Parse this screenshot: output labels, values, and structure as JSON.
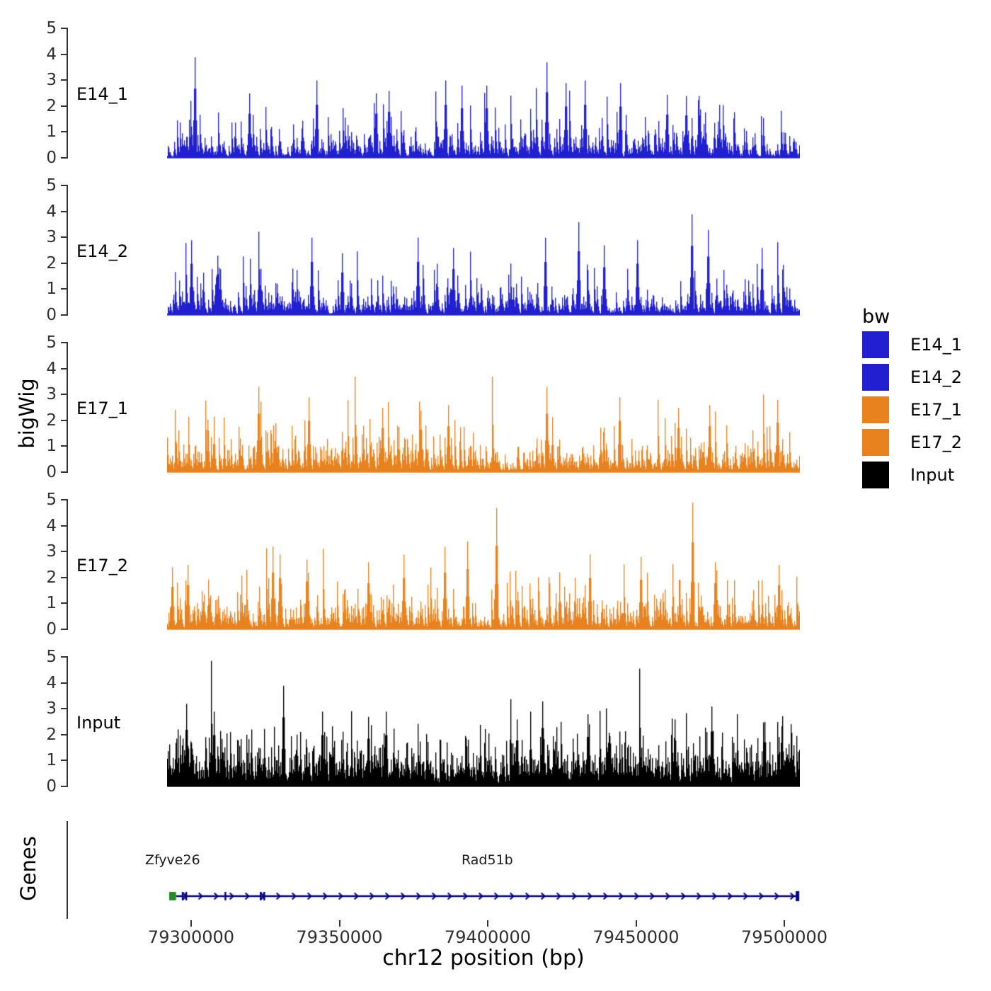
{
  "axis": {
    "y_title": "bigWig",
    "x_title": "chr12 position (bp)",
    "y_ticks": [
      0,
      1,
      2,
      3,
      4,
      5
    ],
    "x_ticks": [
      {
        "bp": 79300000,
        "label": "79300000"
      },
      {
        "bp": 79350000,
        "label": "79350000"
      },
      {
        "bp": 79400000,
        "label": "79400000"
      },
      {
        "bp": 79450000,
        "label": "79450000"
      },
      {
        "bp": 79500000,
        "label": "79500000"
      }
    ]
  },
  "legend": {
    "title": "bw",
    "items": [
      {
        "label": "E14_1",
        "color": "#2020D0"
      },
      {
        "label": "E14_2",
        "color": "#2020D0"
      },
      {
        "label": "E17_1",
        "color": "#E8821E"
      },
      {
        "label": "E17_2",
        "color": "#E8821E"
      },
      {
        "label": "Input",
        "color": "#000000"
      }
    ]
  },
  "genes_panel": {
    "axis_label": "Genes"
  },
  "chart_data": {
    "type": "area",
    "title": "",
    "xlabel": "chr12 position (bp)",
    "ylabel": "bigWig",
    "x_range_bp": [
      79292000,
      79505000
    ],
    "x_tick_bp": [
      79300000,
      79350000,
      79400000,
      79450000,
      79500000
    ],
    "ylim": [
      0,
      5
    ],
    "grid": false,
    "legend_position": "right",
    "tracks": [
      {
        "name": "E14_1",
        "color": "#2020D0",
        "ylim": [
          0,
          5
        ],
        "max_observed": 3.9,
        "baseline_range": [
          0,
          1.5
        ],
        "seed": 101,
        "noise": {
          "scale": 0.46,
          "decay": 0.55,
          "floor": 0.05,
          "gap": 0.06,
          "dense": false
        },
        "peaks": [
          [
            0.044,
            3.9
          ],
          [
            0.13,
            2.5
          ],
          [
            0.236,
            3.0
          ],
          [
            0.33,
            2.5
          ],
          [
            0.35,
            2.6
          ],
          [
            0.44,
            3.0
          ],
          [
            0.465,
            2.8
          ],
          [
            0.505,
            2.8
          ],
          [
            0.6,
            3.7
          ],
          [
            0.63,
            2.9
          ],
          [
            0.66,
            3.0
          ],
          [
            0.716,
            2.9
          ],
          [
            0.79,
            2.45
          ],
          [
            0.82,
            2.4
          ],
          [
            0.84,
            2.4
          ]
        ]
      },
      {
        "name": "E14_2",
        "color": "#2020D0",
        "ylim": [
          0,
          5
        ],
        "max_observed": 3.9,
        "baseline_range": [
          0,
          1.5
        ],
        "seed": 202,
        "noise": {
          "scale": 0.47,
          "decay": 0.55,
          "floor": 0.05,
          "gap": 0.06,
          "dense": false
        },
        "peaks": [
          [
            0.038,
            2.9
          ],
          [
            0.079,
            2.3
          ],
          [
            0.228,
            3.0
          ],
          [
            0.276,
            2.4
          ],
          [
            0.396,
            3.0
          ],
          [
            0.452,
            2.6
          ],
          [
            0.597,
            3.0
          ],
          [
            0.65,
            3.6
          ],
          [
            0.69,
            2.7
          ],
          [
            0.743,
            2.9
          ],
          [
            0.829,
            3.9
          ],
          [
            0.855,
            3.3
          ],
          [
            0.94,
            2.6
          ]
        ]
      },
      {
        "name": "E17_1",
        "color": "#E8821E",
        "ylim": [
          0,
          5
        ],
        "max_observed": 3.3,
        "baseline_range": [
          0,
          1.6
        ],
        "seed": 303,
        "noise": {
          "scale": 0.5,
          "decay": 0.5,
          "floor": 0.08,
          "gap": 0.05,
          "dense": false
        },
        "peaks": [
          [
            0.144,
            3.3
          ],
          [
            0.224,
            2.9
          ],
          [
            0.34,
            2.5
          ],
          [
            0.4,
            2.4
          ],
          [
            0.444,
            2.6
          ],
          [
            0.6,
            3.3
          ],
          [
            0.715,
            2.9
          ],
          [
            0.808,
            2.5
          ],
          [
            0.857,
            2.6
          ],
          [
            0.964,
            2.8
          ]
        ]
      },
      {
        "name": "E17_2",
        "color": "#E8821E",
        "ylim": [
          0,
          5
        ],
        "max_observed": 4.9,
        "baseline_range": [
          0,
          1.6
        ],
        "seed": 404,
        "noise": {
          "scale": 0.5,
          "decay": 0.5,
          "floor": 0.08,
          "gap": 0.05,
          "dense": false
        },
        "peaks": [
          [
            0.008,
            2.4
          ],
          [
            0.032,
            2.5
          ],
          [
            0.167,
            3.2
          ],
          [
            0.178,
            2.9
          ],
          [
            0.22,
            2.7
          ],
          [
            0.318,
            2.6
          ],
          [
            0.374,
            2.9
          ],
          [
            0.438,
            3.2
          ],
          [
            0.474,
            3.4
          ],
          [
            0.52,
            4.7
          ],
          [
            0.668,
            2.9
          ],
          [
            0.748,
            2.8
          ],
          [
            0.83,
            4.9
          ],
          [
            0.866,
            2.6
          ],
          [
            0.966,
            2.5
          ]
        ]
      },
      {
        "name": "Input",
        "color": "#000000",
        "ylim": [
          0,
          5
        ],
        "max_observed": 3.9,
        "baseline_range": [
          0.2,
          2.0
        ],
        "seed": 505,
        "noise": {
          "scale": 0.66,
          "decay": 0.5,
          "floor": 0.12,
          "gap": 0.0,
          "dense": true
        },
        "peaks": [
          [
            0.03,
            3.2
          ],
          [
            0.074,
            2.9
          ],
          [
            0.183,
            3.9
          ],
          [
            0.245,
            2.9
          ],
          [
            0.318,
            2.7
          ],
          [
            0.346,
            2.9
          ],
          [
            0.553,
            2.6
          ],
          [
            0.593,
            3.3
          ],
          [
            0.664,
            2.8
          ],
          [
            0.802,
            2.6
          ],
          [
            0.86,
            3.1
          ],
          [
            0.944,
            2.5
          ]
        ]
      }
    ],
    "genes": [
      {
        "name": "Zfyve26",
        "start_bp": 79292600,
        "end_bp": 79294900,
        "strand": "+",
        "color": "#228B22",
        "type": "box"
      },
      {
        "name": "Rad51b",
        "start_bp": 79294900,
        "end_bp": 79504800,
        "strand": "+",
        "color": "#00008B",
        "type": "transcript",
        "exon_bp": [
          79297100,
          79298300,
          79311500,
          79323400,
          79324600
        ],
        "end_box": true
      }
    ]
  }
}
